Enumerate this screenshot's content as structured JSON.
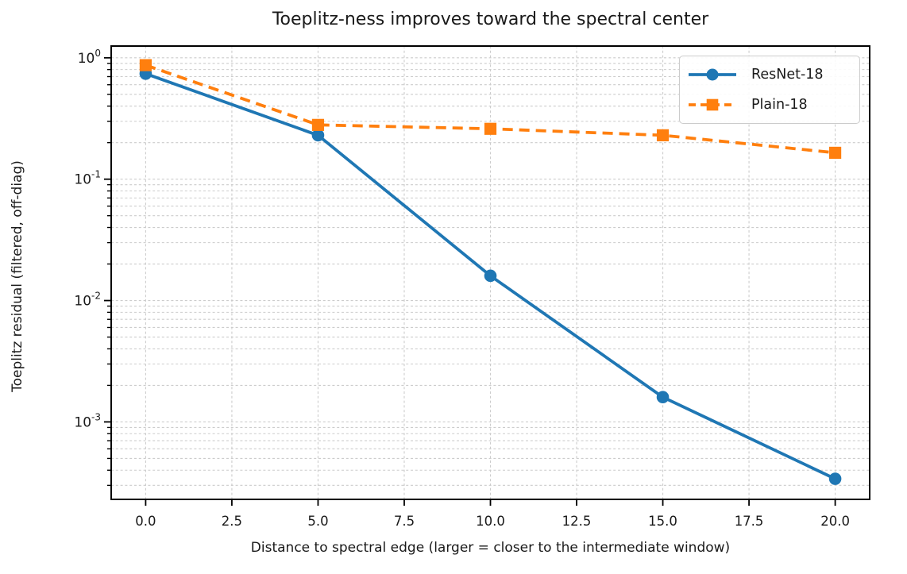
{
  "chart_data": {
    "type": "line",
    "title": "Toeplitz-ness improves toward the spectral center",
    "xlabel": "Distance to spectral edge (larger = closer to the intermediate window)",
    "ylabel": "Toeplitz residual (filtered, off-diag)",
    "yscale": "log",
    "x": [
      0,
      5,
      10,
      15,
      20
    ],
    "series": [
      {
        "name": "ResNet-18",
        "color": "#1f77b4",
        "marker": "circle",
        "line_style": "solid",
        "values": [
          0.74,
          0.23,
          0.016,
          0.0016,
          0.00034
        ]
      },
      {
        "name": "Plain-18",
        "color": "#ff7f0e",
        "marker": "square",
        "line_style": "dashed",
        "values": [
          0.87,
          0.28,
          0.26,
          0.23,
          0.165
        ]
      }
    ],
    "x_ticks": {
      "values": [
        0,
        2.5,
        5,
        7.5,
        10,
        12.5,
        15,
        17.5,
        20
      ],
      "labels": [
        "0.0",
        "2.5",
        "5.0",
        "7.5",
        "10.0",
        "12.5",
        "15.0",
        "17.5",
        "20.0"
      ]
    },
    "y_ticks": {
      "base": 10,
      "exponents": [
        0,
        -1,
        -2,
        -3
      ]
    },
    "xlim": [
      -1,
      21
    ],
    "ylim": [
      0.00023,
      1.25
    ],
    "grid": {
      "show": true,
      "which": "both",
      "color": "#cccccc",
      "style": "dashed"
    },
    "legend": {
      "position": "upper right",
      "entries": [
        "ResNet-18",
        "Plain-18"
      ]
    }
  },
  "style": {
    "accent_blue": "#1f77b4",
    "accent_orange": "#ff7f0e",
    "axis_color": "#000000",
    "text_color": "#1a1a1a",
    "grid_color": "#cccccc",
    "background": "#ffffff"
  }
}
